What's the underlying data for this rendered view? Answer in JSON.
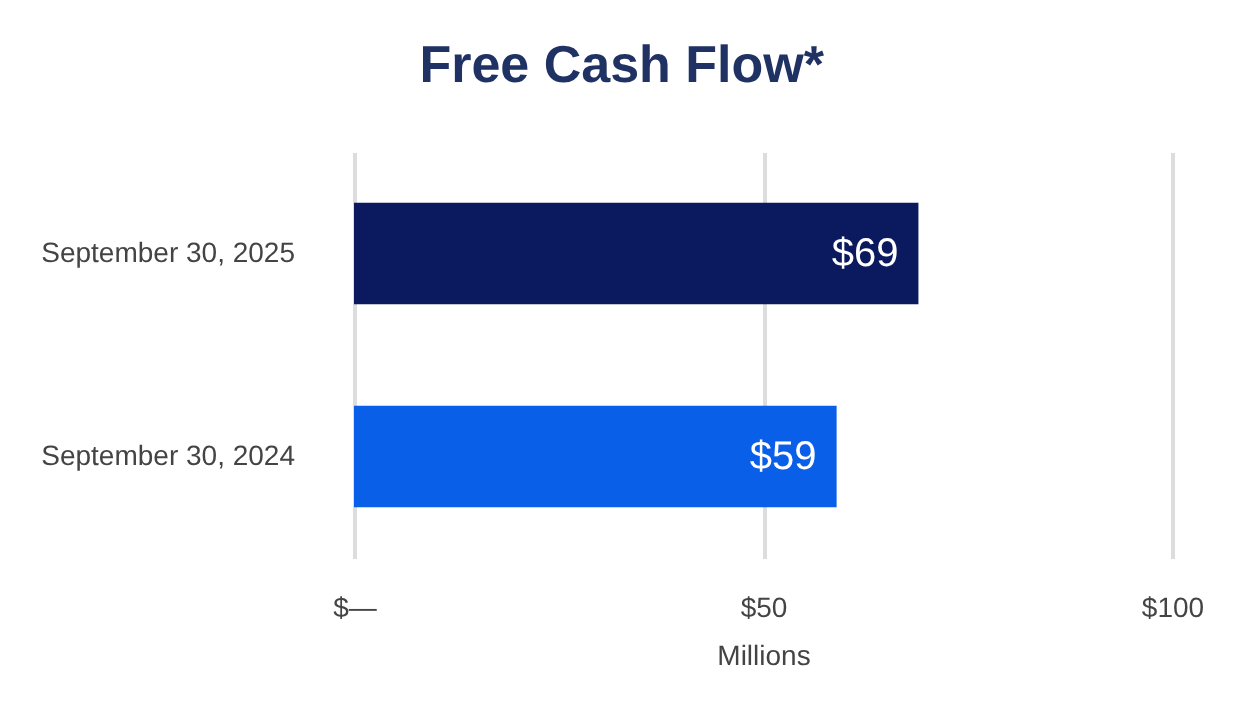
{
  "chart_data": {
    "type": "bar",
    "orientation": "horizontal",
    "title": "Free Cash Flow*",
    "xlabel": "Millions",
    "categories": [
      "September 30, 2025",
      "September 30, 2024"
    ],
    "values": [
      69,
      59
    ],
    "colors": [
      "#0b1a5e",
      "#0a5fe8"
    ],
    "value_labels": [
      "$69",
      "$59"
    ],
    "xlim": [
      0,
      100
    ],
    "xticks": [
      {
        "value": 0,
        "label": "$—"
      },
      {
        "value": 50,
        "label": "$50"
      },
      {
        "value": 100,
        "label": "$100"
      }
    ],
    "grid": "x"
  }
}
